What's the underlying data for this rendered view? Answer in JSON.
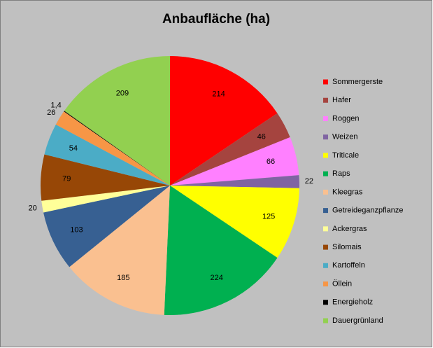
{
  "chart_data": {
    "type": "pie",
    "title": "Anbaufläche (ha)",
    "categories": [
      "Sommergerste",
      "Hafer",
      "Roggen",
      "Weizen",
      "Triticale",
      "Raps",
      "Kleegras",
      "Getreideganzpflanze",
      "Ackergras",
      "Silomais",
      "Kartoffeln",
      "Öllein",
      "Energieholz",
      "Dauergrünland"
    ],
    "values": [
      214,
      46,
      66,
      22,
      125,
      224,
      185,
      103,
      20,
      79,
      54,
      26,
      1.4,
      209
    ],
    "value_labels": [
      "214",
      "46",
      "66",
      "22",
      "125",
      "224",
      "185",
      "103",
      "20",
      "79",
      "54",
      "26",
      "1,4",
      "209"
    ],
    "colors": [
      "#ff0000",
      "#a5443f",
      "#ff80ff",
      "#8064a2",
      "#ffff00",
      "#00b050",
      "#fac090",
      "#376092",
      "#ffff99",
      "#974706",
      "#4bacc6",
      "#f79646",
      "#000000",
      "#92d050"
    ],
    "legend": "right"
  }
}
